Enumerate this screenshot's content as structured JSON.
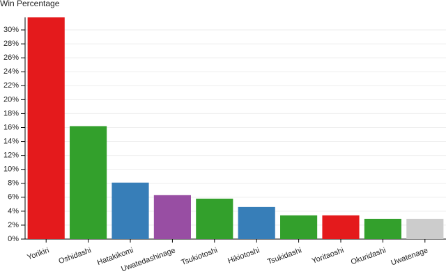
{
  "chart_data": {
    "type": "bar",
    "title": "Win Percentage",
    "categories": [
      "Yorikiri",
      "Oshidashi",
      "Hatakikomi",
      "Uwatedashinage",
      "Tsukiotoshi",
      "Hikiotoshi",
      "Tsukidashi",
      "Yoritaoshi",
      "Okuridashi",
      "Uwatenage"
    ],
    "values": [
      31.8,
      16.2,
      8.1,
      6.3,
      5.8,
      4.6,
      3.4,
      3.4,
      2.9,
      2.9
    ],
    "colors": [
      "#e41a1c",
      "#33a02c",
      "#377eb8",
      "#984ea3",
      "#33a02c",
      "#377eb8",
      "#33a02c",
      "#e41a1c",
      "#33a02c",
      "#cccccc"
    ],
    "ylim": [
      0,
      31.8
    ],
    "yticks": [
      {
        "value": 0,
        "label": "0%"
      },
      {
        "value": 2,
        "label": "2%"
      },
      {
        "value": 4,
        "label": "4%"
      },
      {
        "value": 6,
        "label": "6%"
      },
      {
        "value": 8,
        "label": "8%"
      },
      {
        "value": 10,
        "label": "10%"
      },
      {
        "value": 12,
        "label": "12%"
      },
      {
        "value": 14,
        "label": "14%"
      },
      {
        "value": 16,
        "label": "16%"
      },
      {
        "value": 18,
        "label": "18%"
      },
      {
        "value": 20,
        "label": "20%"
      },
      {
        "value": 22,
        "label": "22%"
      },
      {
        "value": 24,
        "label": "24%"
      },
      {
        "value": 26,
        "label": "26%"
      },
      {
        "value": 28,
        "label": "28%"
      },
      {
        "value": 30,
        "label": "30%"
      }
    ],
    "grid": true
  }
}
